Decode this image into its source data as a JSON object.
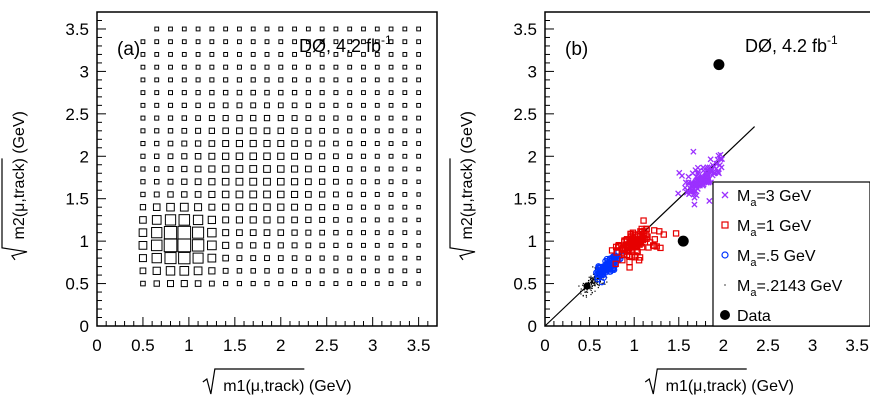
{
  "chart_data": [
    {
      "type": "box",
      "panel_label": "(a)",
      "annotation": "DØ, 4.2 fb",
      "annotation_sup": "-1",
      "xlabel": "m1(μ,track) (GeV)",
      "ylabel": "m2(μ,track) (GeV)",
      "xlim": [
        0,
        3.7
      ],
      "ylim": [
        0,
        3.7
      ],
      "xticks": [
        "0",
        "0.5",
        "1",
        "1.5",
        "2",
        "2.5",
        "3",
        "3.5"
      ],
      "yticks": [
        "0",
        "0.5",
        "1",
        "1.5",
        "2",
        "2.5",
        "3",
        "3.5"
      ],
      "grid": false,
      "bin_centers": [
        0.5,
        0.65,
        0.8,
        0.95,
        1.1,
        1.25,
        1.4,
        1.55,
        1.7,
        1.85,
        2.0,
        2.15,
        2.3,
        2.45,
        2.6,
        2.75,
        2.9,
        3.05,
        3.2,
        3.35,
        3.5
      ],
      "relative_density_note": "Box area proportional to counts; peak near (0.9, 1.0)"
    },
    {
      "type": "scatter",
      "panel_label": "(b)",
      "annotation": "DØ, 4.2 fb",
      "annotation_sup": "-1",
      "xlabel": "m1(μ,track) (GeV)",
      "ylabel": "m2(μ,track) (GeV)",
      "xlim": [
        0,
        3.7
      ],
      "ylim": [
        0,
        3.7
      ],
      "xticks": [
        "0",
        "0.5",
        "1",
        "1.5",
        "2",
        "2.5",
        "3",
        "3.5"
      ],
      "yticks": [
        "0",
        "0.5",
        "1",
        "1.5",
        "2",
        "2.5",
        "3",
        "3.5"
      ],
      "grid": false,
      "diagonal_line": {
        "x": [
          0,
          2.35
        ],
        "y": [
          0,
          2.35
        ]
      },
      "legend_position": "right",
      "series": [
        {
          "name": "M",
          "sub": "a",
          "suffix": "=3 GeV",
          "marker": "x",
          "color": "#9b30ff",
          "center": [
            1.75,
            1.72
          ],
          "spread": 0.09,
          "count": 120
        },
        {
          "name": "M",
          "sub": "a",
          "suffix": "=1 GeV",
          "marker": "square",
          "color": "#e60000",
          "center": [
            1.0,
            0.98
          ],
          "spread": 0.09,
          "count": 110
        },
        {
          "name": "M",
          "sub": "a",
          "suffix": "=.5 GeV",
          "marker": "circle",
          "color": "#0033ff",
          "center": [
            0.7,
            0.7
          ],
          "spread": 0.06,
          "count": 110
        },
        {
          "name": "M",
          "sub": "a",
          "suffix": "=.2143 GeV",
          "marker": "dot",
          "color": "#000000",
          "center": [
            0.55,
            0.52
          ],
          "spread": 0.07,
          "count": 160
        },
        {
          "name": "Data",
          "sub": "",
          "suffix": "",
          "marker": "bigdot",
          "color": "#000000",
          "points": [
            [
              1.95,
              3.08
            ],
            [
              1.55,
              1.0
            ],
            [
              0.47,
              0.47
            ]
          ]
        }
      ]
    }
  ]
}
